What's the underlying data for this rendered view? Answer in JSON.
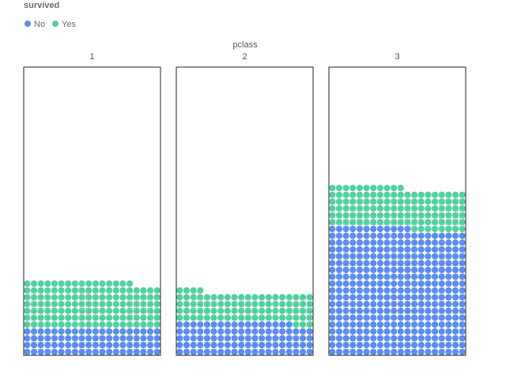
{
  "chart_data": {
    "type": "waffle",
    "legend": {
      "title": "survived",
      "items": [
        {
          "label": "No",
          "color": "#5b8def"
        },
        {
          "label": "Yes",
          "color": "#52d1a0"
        }
      ]
    },
    "facet_title": "pclass",
    "columns_per_panel": 20,
    "categories": [
      "1",
      "2",
      "3"
    ],
    "series": [
      {
        "name": "No",
        "values": [
          80,
          97,
          372
        ]
      },
      {
        "name": "Yes",
        "values": [
          136,
          87,
          119
        ]
      }
    ]
  }
}
